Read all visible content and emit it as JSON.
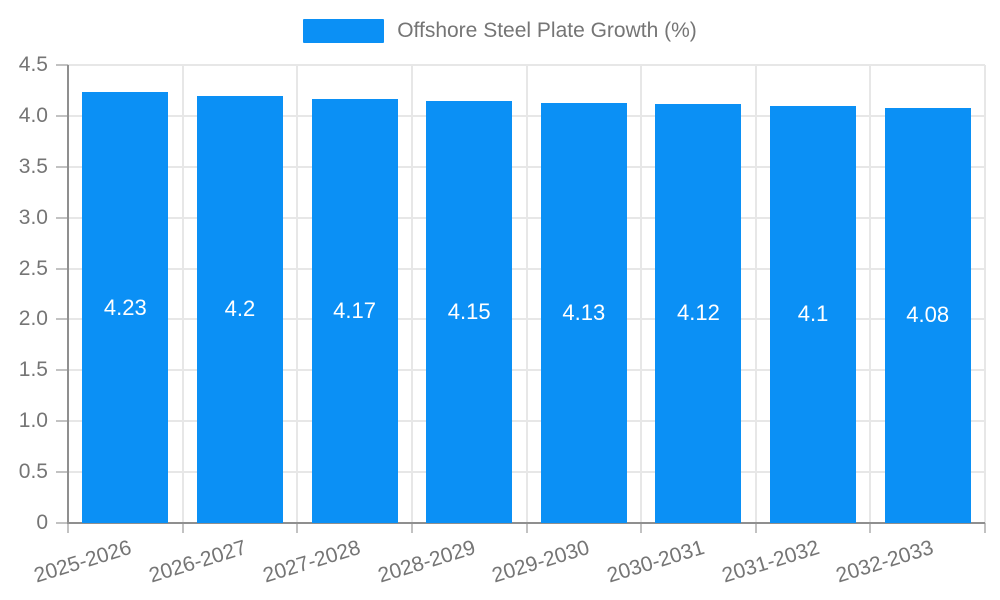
{
  "chart_data": {
    "type": "bar",
    "title": "",
    "legend": [
      "Offshore Steel Plate Growth (%)"
    ],
    "legend_position": "top-center",
    "categories": [
      "2025-2026",
      "2026-2027",
      "2027-2028",
      "2028-2029",
      "2029-2030",
      "2030-2031",
      "2031-2032",
      "2032-2033"
    ],
    "series": [
      {
        "name": "Offshore Steel Plate Growth (%)",
        "values": [
          4.23,
          4.2,
          4.17,
          4.15,
          4.13,
          4.12,
          4.1,
          4.08
        ]
      }
    ],
    "value_labels": [
      "4.23",
      "4.2",
      "4.17",
      "4.15",
      "4.13",
      "4.12",
      "4.1",
      "4.08"
    ],
    "xlabel": "",
    "ylabel": "",
    "ylim": [
      0,
      4.5
    ],
    "ytick_labels": [
      "0",
      "0.5",
      "1.0",
      "1.5",
      "2.0",
      "2.5",
      "3.0",
      "3.5",
      "4.0",
      "4.5"
    ],
    "ytick_values": [
      0,
      0.5,
      1,
      1.5,
      2,
      2.5,
      3,
      3.5,
      4,
      4.5
    ],
    "grid": true,
    "x_label_rotation_deg": -17,
    "colors": {
      "bar": "#0B90F5",
      "axis_text": "#757575",
      "grid_line": "#E7E7E7",
      "tick": "#C2C2C2",
      "axis_line": "#8F8F8F",
      "bar_value_text": "#FFFFFF",
      "background": "#FFFFFF"
    }
  }
}
